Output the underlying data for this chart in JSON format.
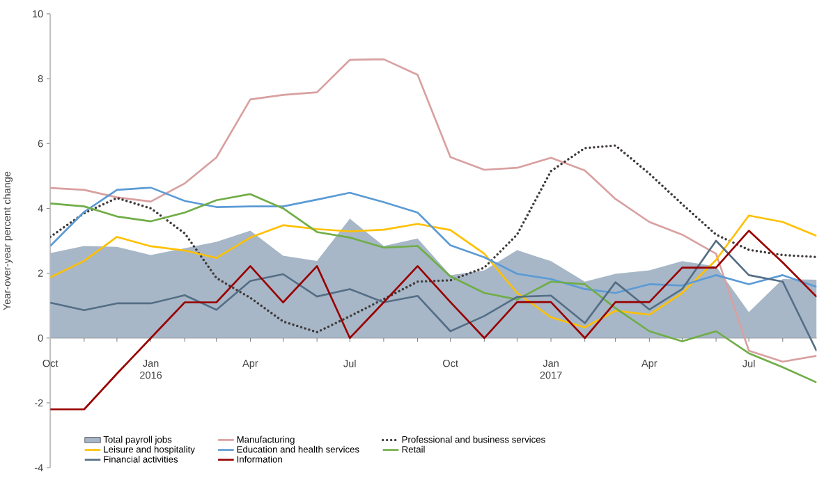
{
  "chart_data": {
    "type": "line",
    "ylabel": "Year-over-year percent change",
    "x": [
      "2015-10",
      "2015-11",
      "2015-12",
      "2016-01",
      "2016-02",
      "2016-03",
      "2016-04",
      "2016-05",
      "2016-06",
      "2016-07",
      "2016-08",
      "2016-09",
      "2016-10",
      "2016-11",
      "2016-12",
      "2017-01",
      "2017-02",
      "2017-03",
      "2017-04",
      "2017-05",
      "2017-06",
      "2017-07",
      "2017-08",
      "2017-09"
    ],
    "series": [
      {
        "name": "Total payroll jobs",
        "type": "area",
        "color": "#a7b7c8",
        "values": [
          2.62,
          2.84,
          2.81,
          2.56,
          2.77,
          2.97,
          3.31,
          2.54,
          2.38,
          3.68,
          2.84,
          3.07,
          1.94,
          2.09,
          2.71,
          2.37,
          1.74,
          1.98,
          2.09,
          2.37,
          2.21,
          0.8,
          1.82,
          1.8
        ]
      },
      {
        "name": "Manufacturing",
        "color": "#d9a0a0",
        "values": [
          4.63,
          4.57,
          4.34,
          4.21,
          4.77,
          5.57,
          7.36,
          7.5,
          7.58,
          8.58,
          8.6,
          8.12,
          5.58,
          5.19,
          5.25,
          5.56,
          5.17,
          4.29,
          3.58,
          3.19,
          2.6,
          -0.39,
          -0.73,
          -0.55
        ]
      },
      {
        "name": "Professional and business services",
        "color": "#403a3a",
        "line_style": "dotted",
        "values": [
          3.12,
          3.85,
          4.32,
          4.0,
          3.23,
          1.85,
          1.24,
          0.51,
          0.18,
          0.67,
          1.2,
          1.74,
          1.78,
          2.17,
          3.19,
          5.15,
          5.86,
          5.94,
          5.07,
          4.13,
          3.19,
          2.72,
          2.56,
          2.5
        ]
      },
      {
        "name": "Leisure and hospitality",
        "color": "#ffc000",
        "values": [
          1.87,
          2.38,
          3.12,
          2.83,
          2.7,
          2.47,
          3.1,
          3.48,
          3.36,
          3.29,
          3.34,
          3.52,
          3.33,
          2.6,
          1.39,
          0.64,
          0.33,
          0.84,
          0.72,
          1.39,
          2.41,
          3.78,
          3.58,
          3.15
        ]
      },
      {
        "name": "Education and health services",
        "color": "#5b9bd5",
        "values": [
          2.84,
          3.89,
          4.57,
          4.64,
          4.23,
          4.04,
          4.06,
          4.06,
          4.27,
          4.48,
          4.19,
          3.87,
          2.86,
          2.49,
          1.98,
          1.82,
          1.51,
          1.39,
          1.66,
          1.62,
          1.94,
          1.66,
          1.94,
          1.58
        ]
      },
      {
        "name": "Retail",
        "color": "#70ad47",
        "values": [
          4.15,
          4.06,
          3.75,
          3.6,
          3.87,
          4.25,
          4.44,
          4.0,
          3.27,
          3.1,
          2.79,
          2.84,
          1.9,
          1.39,
          1.19,
          1.74,
          1.66,
          0.92,
          0.21,
          -0.1,
          0.21,
          -0.47,
          -0.9,
          -1.37
        ]
      },
      {
        "name": "Financial activities",
        "color": "#546e85",
        "values": [
          1.09,
          0.86,
          1.07,
          1.07,
          1.32,
          0.87,
          1.76,
          1.97,
          1.28,
          1.51,
          1.1,
          1.3,
          0.21,
          0.68,
          1.27,
          1.31,
          0.46,
          1.72,
          0.88,
          1.51,
          3.0,
          1.94,
          1.74,
          -0.4
        ]
      },
      {
        "name": "Information",
        "color": "#990000",
        "values": [
          -2.2,
          -2.2,
          -1.1,
          0.0,
          1.1,
          1.1,
          2.22,
          1.1,
          2.22,
          0.0,
          1.1,
          2.22,
          1.11,
          0.0,
          1.11,
          1.11,
          0.0,
          1.11,
          1.11,
          2.17,
          2.17,
          3.31,
          2.33,
          1.27
        ]
      }
    ],
    "xlim": [
      "2015-10",
      "2017-09"
    ],
    "xticks": [
      {
        "value": "2015-10",
        "label": "Oct"
      },
      {
        "value": "2015-11",
        "label": null
      },
      {
        "value": "2015-12",
        "label": null
      },
      {
        "value": "2016-01",
        "label": "Jan 2016"
      },
      {
        "value": "2016-02",
        "label": null
      },
      {
        "value": "2016-03",
        "label": null
      },
      {
        "value": "2016-04",
        "label": "Apr"
      },
      {
        "value": "2016-05",
        "label": null
      },
      {
        "value": "2016-06",
        "label": null
      },
      {
        "value": "2016-07",
        "label": "Jul"
      },
      {
        "value": "2016-08",
        "label": null
      },
      {
        "value": "2016-09",
        "label": null
      },
      {
        "value": "2016-10",
        "label": "Oct"
      },
      {
        "value": "2016-11",
        "label": null
      },
      {
        "value": "2016-12",
        "label": null
      },
      {
        "value": "2017-01",
        "label": "Jan 2017"
      },
      {
        "value": "2017-02",
        "label": null
      },
      {
        "value": "2017-03",
        "label": null
      },
      {
        "value": "2017-04",
        "label": "Apr"
      },
      {
        "value": "2017-05",
        "label": null
      },
      {
        "value": "2017-06",
        "label": null
      },
      {
        "value": "2017-07",
        "label": "Jul"
      },
      {
        "value": "2017-08",
        "label": null
      }
    ],
    "ylim": [
      -4,
      10
    ],
    "yticks": [
      -4,
      -2,
      0,
      2,
      4,
      6,
      8,
      10
    ],
    "legend": "bottom",
    "grid": false,
    "marker": "none"
  }
}
